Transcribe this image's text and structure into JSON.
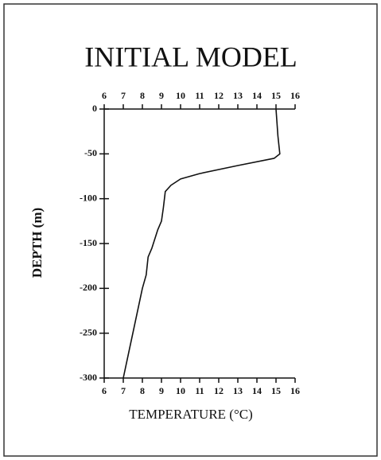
{
  "chart_data": {
    "type": "line",
    "title": "INITIAL MODEL",
    "x_label": "TEMPERATURE (°C)",
    "y_label": "DEPTH (m)",
    "xlim": [
      6,
      16
    ],
    "xticks": [
      6,
      7,
      8,
      9,
      10,
      11,
      12,
      13,
      14,
      15,
      16
    ],
    "ylim": [
      -300,
      0
    ],
    "yticks": [
      0,
      -50,
      -100,
      -150,
      -200,
      -250,
      -300
    ],
    "series": [
      {
        "name": "Temperature",
        "color": "#111111",
        "x": [
          15.0,
          15.1,
          15.2,
          14.9,
          13.0,
          11.0,
          10.0,
          9.5,
          9.2,
          9.1,
          9.0,
          8.8,
          8.5,
          8.3,
          8.2,
          8.0,
          7.6,
          7.3,
          7.0
        ],
        "values": [
          0,
          -30,
          -50,
          -55,
          -63,
          -72,
          -78,
          -85,
          -92,
          -110,
          -125,
          -135,
          -155,
          -165,
          -185,
          -200,
          -240,
          -270,
          -300
        ]
      }
    ]
  }
}
